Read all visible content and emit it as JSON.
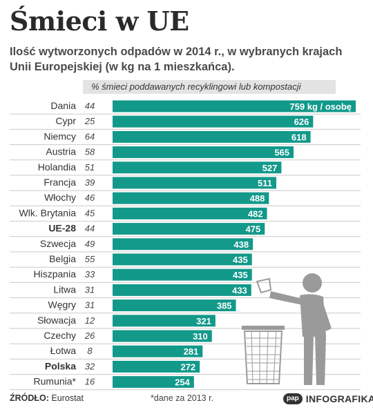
{
  "header": {
    "title": "Śmieci w UE",
    "subtitle": "Ilość wytworzonych odpadów w 2014 r., w wybranych krajach Unii Europejskiej (w kg na 1 mieszkańca).",
    "column_header": "% śmieci poddawanych recyklingowi lub kompostacji"
  },
  "footer": {
    "source_label": "ŹRÓDŁO:",
    "source_value": "Eurostat",
    "note": "*dane za 2013 r.",
    "logo_text": "pap",
    "brand": "INFOGRAFIKA"
  },
  "colors": {
    "bar": "#12998a",
    "row_border": "#c9c9c9",
    "value_text": "#ffffff"
  },
  "chart_data": {
    "type": "bar",
    "orientation": "horizontal",
    "title": "Śmieci w UE",
    "xlim": [
      0,
      759
    ],
    "first_value_label": "759 kg / osobę",
    "categories": [
      "Dania",
      "Cypr",
      "Niemcy",
      "Austria",
      "Holandia",
      "Francja",
      "Włochy",
      "Wlk. Brytania",
      "UE-28",
      "Szwecja",
      "Belgia",
      "Hiszpania",
      "Litwa",
      "Węgry",
      "Słowacja",
      "Czechy",
      "Łotwa",
      "Polska",
      "Rumunia*"
    ],
    "bold_categories": [
      "UE-28",
      "Polska"
    ],
    "series": [
      {
        "values": [
          759,
          626,
          618,
          565,
          527,
          511,
          488,
          482,
          475,
          438,
          435,
          435,
          433,
          385,
          321,
          310,
          281,
          272,
          254
        ]
      },
      {
        "values": [
          44,
          25,
          64,
          58,
          51,
          39,
          46,
          45,
          44,
          49,
          55,
          33,
          31,
          31,
          12,
          26,
          8,
          32,
          16
        ]
      }
    ]
  },
  "icons": {
    "figure": "person-throwing-trash-icon",
    "bin": "trash-bin-icon"
  }
}
